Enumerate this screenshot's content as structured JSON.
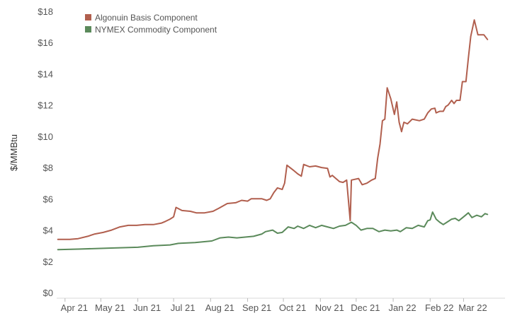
{
  "chart_data": {
    "type": "line",
    "title": "",
    "xlabel": "",
    "ylabel": "$/MMBtu",
    "ylim": [
      0,
      18
    ],
    "yticks": [
      0,
      2,
      4,
      6,
      8,
      10,
      12,
      14,
      16,
      18
    ],
    "ytick_labels": [
      "$0",
      "$2",
      "$4",
      "$6",
      "$8",
      "$10",
      "$12",
      "$14",
      "$16",
      "$18"
    ],
    "xlim": [
      "2021-03-25",
      "2022-03-31"
    ],
    "xtick_dates": [
      "2021-04-01",
      "2021-05-01",
      "2021-06-01",
      "2021-07-01",
      "2021-08-01",
      "2021-09-01",
      "2021-10-01",
      "2021-11-01",
      "2021-12-01",
      "2022-01-01",
      "2022-02-01",
      "2022-03-01"
    ],
    "xtick_labels": [
      "Apr 21",
      "May 21",
      "Jun 21",
      "Jul 21",
      "Aug 21",
      "Sep 21",
      "Oct 21",
      "Nov 21",
      "Dec 21",
      "Jan 22",
      "Feb 22",
      "Mar 22"
    ],
    "grid": false,
    "legend_position": "top-left",
    "series": [
      {
        "name": "Algonuin Basis Component",
        "color": "#b15f4e",
        "points": [
          [
            "2021-03-26",
            3.4
          ],
          [
            "2021-04-05",
            3.4
          ],
          [
            "2021-04-12",
            3.45
          ],
          [
            "2021-04-20",
            3.6
          ],
          [
            "2021-04-26",
            3.75
          ],
          [
            "2021-05-03",
            3.85
          ],
          [
            "2021-05-10",
            4.0
          ],
          [
            "2021-05-17",
            4.2
          ],
          [
            "2021-05-24",
            4.3
          ],
          [
            "2021-05-31",
            4.3
          ],
          [
            "2021-06-07",
            4.35
          ],
          [
            "2021-06-14",
            4.35
          ],
          [
            "2021-06-21",
            4.45
          ],
          [
            "2021-06-24",
            4.55
          ],
          [
            "2021-06-28",
            4.7
          ],
          [
            "2021-07-01",
            4.85
          ],
          [
            "2021-07-03",
            5.45
          ],
          [
            "2021-07-08",
            5.25
          ],
          [
            "2021-07-15",
            5.2
          ],
          [
            "2021-07-20",
            5.1
          ],
          [
            "2021-07-27",
            5.1
          ],
          [
            "2021-08-03",
            5.2
          ],
          [
            "2021-08-08",
            5.4
          ],
          [
            "2021-08-15",
            5.7
          ],
          [
            "2021-08-22",
            5.75
          ],
          [
            "2021-08-27",
            5.9
          ],
          [
            "2021-09-01",
            5.85
          ],
          [
            "2021-09-04",
            6.0
          ],
          [
            "2021-09-13",
            6.0
          ],
          [
            "2021-09-17",
            5.9
          ],
          [
            "2021-09-20",
            6.0
          ],
          [
            "2021-09-23",
            6.4
          ],
          [
            "2021-09-26",
            6.7
          ],
          [
            "2021-09-30",
            6.6
          ],
          [
            "2021-10-02",
            7.0
          ],
          [
            "2021-10-04",
            8.15
          ],
          [
            "2021-10-09",
            7.85
          ],
          [
            "2021-10-13",
            7.6
          ],
          [
            "2021-10-16",
            7.45
          ],
          [
            "2021-10-18",
            8.2
          ],
          [
            "2021-10-23",
            8.05
          ],
          [
            "2021-10-28",
            8.1
          ],
          [
            "2021-11-02",
            8.0
          ],
          [
            "2021-11-07",
            7.95
          ],
          [
            "2021-11-09",
            7.4
          ],
          [
            "2021-11-11",
            7.5
          ],
          [
            "2021-11-14",
            7.3
          ],
          [
            "2021-11-17",
            7.1
          ],
          [
            "2021-11-20",
            7.05
          ],
          [
            "2021-11-23",
            7.2
          ],
          [
            "2021-11-26",
            4.6
          ],
          [
            "2021-11-27",
            7.2
          ],
          [
            "2021-12-03",
            7.3
          ],
          [
            "2021-12-06",
            6.9
          ],
          [
            "2021-12-10",
            7.0
          ],
          [
            "2021-12-14",
            7.2
          ],
          [
            "2021-12-17",
            7.3
          ],
          [
            "2021-12-19",
            8.6
          ],
          [
            "2021-12-21",
            9.5
          ],
          [
            "2021-12-23",
            11.0
          ],
          [
            "2021-12-25",
            11.1
          ],
          [
            "2021-12-27",
            13.1
          ],
          [
            "2021-12-30",
            12.4
          ],
          [
            "2022-01-02",
            11.4
          ],
          [
            "2022-01-04",
            12.2
          ],
          [
            "2022-01-06",
            10.9
          ],
          [
            "2022-01-08",
            10.3
          ],
          [
            "2022-01-10",
            10.9
          ],
          [
            "2022-01-13",
            10.8
          ],
          [
            "2022-01-17",
            11.1
          ],
          [
            "2022-01-23",
            11.0
          ],
          [
            "2022-01-27",
            11.1
          ],
          [
            "2022-01-30",
            11.5
          ],
          [
            "2022-02-02",
            11.75
          ],
          [
            "2022-02-05",
            11.8
          ],
          [
            "2022-02-06",
            11.5
          ],
          [
            "2022-02-09",
            11.6
          ],
          [
            "2022-02-12",
            11.6
          ],
          [
            "2022-02-14",
            11.9
          ],
          [
            "2022-02-16",
            12.0
          ],
          [
            "2022-02-19",
            12.3
          ],
          [
            "2022-02-21",
            12.1
          ],
          [
            "2022-02-23",
            12.3
          ],
          [
            "2022-02-26",
            12.3
          ],
          [
            "2022-02-28",
            13.5
          ],
          [
            "2022-03-03",
            13.5
          ],
          [
            "2022-03-05",
            15.0
          ],
          [
            "2022-03-07",
            16.4
          ],
          [
            "2022-03-10",
            17.45
          ],
          [
            "2022-03-13",
            16.5
          ],
          [
            "2022-03-18",
            16.5
          ],
          [
            "2022-03-21",
            16.2
          ]
        ]
      },
      {
        "name": "NYMEX Commodity Component",
        "color": "#5b8a5b",
        "points": [
          [
            "2021-03-26",
            2.75
          ],
          [
            "2021-04-12",
            2.78
          ],
          [
            "2021-05-10",
            2.85
          ],
          [
            "2021-06-01",
            2.9
          ],
          [
            "2021-06-14",
            3.0
          ],
          [
            "2021-06-28",
            3.05
          ],
          [
            "2021-07-05",
            3.15
          ],
          [
            "2021-07-19",
            3.2
          ],
          [
            "2021-08-02",
            3.3
          ],
          [
            "2021-08-09",
            3.5
          ],
          [
            "2021-08-16",
            3.55
          ],
          [
            "2021-08-23",
            3.5
          ],
          [
            "2021-08-30",
            3.55
          ],
          [
            "2021-09-06",
            3.6
          ],
          [
            "2021-09-13",
            3.75
          ],
          [
            "2021-09-16",
            3.9
          ],
          [
            "2021-09-22",
            4.0
          ],
          [
            "2021-09-26",
            3.8
          ],
          [
            "2021-09-30",
            3.85
          ],
          [
            "2021-10-05",
            4.2
          ],
          [
            "2021-10-10",
            4.1
          ],
          [
            "2021-10-13",
            4.25
          ],
          [
            "2021-10-18",
            4.1
          ],
          [
            "2021-10-23",
            4.3
          ],
          [
            "2021-10-28",
            4.15
          ],
          [
            "2021-11-02",
            4.3
          ],
          [
            "2021-11-07",
            4.2
          ],
          [
            "2021-11-12",
            4.1
          ],
          [
            "2021-11-17",
            4.25
          ],
          [
            "2021-11-22",
            4.3
          ],
          [
            "2021-11-27",
            4.5
          ],
          [
            "2021-12-01",
            4.3
          ],
          [
            "2021-12-05",
            4.0
          ],
          [
            "2021-12-10",
            4.1
          ],
          [
            "2021-12-15",
            4.1
          ],
          [
            "2021-12-20",
            3.9
          ],
          [
            "2021-12-25",
            4.0
          ],
          [
            "2021-12-30",
            3.95
          ],
          [
            "2022-01-04",
            4.0
          ],
          [
            "2022-01-07",
            3.9
          ],
          [
            "2022-01-12",
            4.15
          ],
          [
            "2022-01-17",
            4.1
          ],
          [
            "2022-01-22",
            4.3
          ],
          [
            "2022-01-27",
            4.2
          ],
          [
            "2022-01-30",
            4.6
          ],
          [
            "2022-02-01",
            4.65
          ],
          [
            "2022-02-03",
            5.15
          ],
          [
            "2022-02-06",
            4.7
          ],
          [
            "2022-02-09",
            4.5
          ],
          [
            "2022-02-12",
            4.35
          ],
          [
            "2022-02-15",
            4.5
          ],
          [
            "2022-02-19",
            4.7
          ],
          [
            "2022-02-22",
            4.75
          ],
          [
            "2022-02-25",
            4.6
          ],
          [
            "2022-03-01",
            4.85
          ],
          [
            "2022-03-05",
            5.1
          ],
          [
            "2022-03-08",
            4.8
          ],
          [
            "2022-03-12",
            4.95
          ],
          [
            "2022-03-16",
            4.85
          ],
          [
            "2022-03-19",
            5.05
          ],
          [
            "2022-03-21",
            5.0
          ]
        ]
      }
    ]
  }
}
